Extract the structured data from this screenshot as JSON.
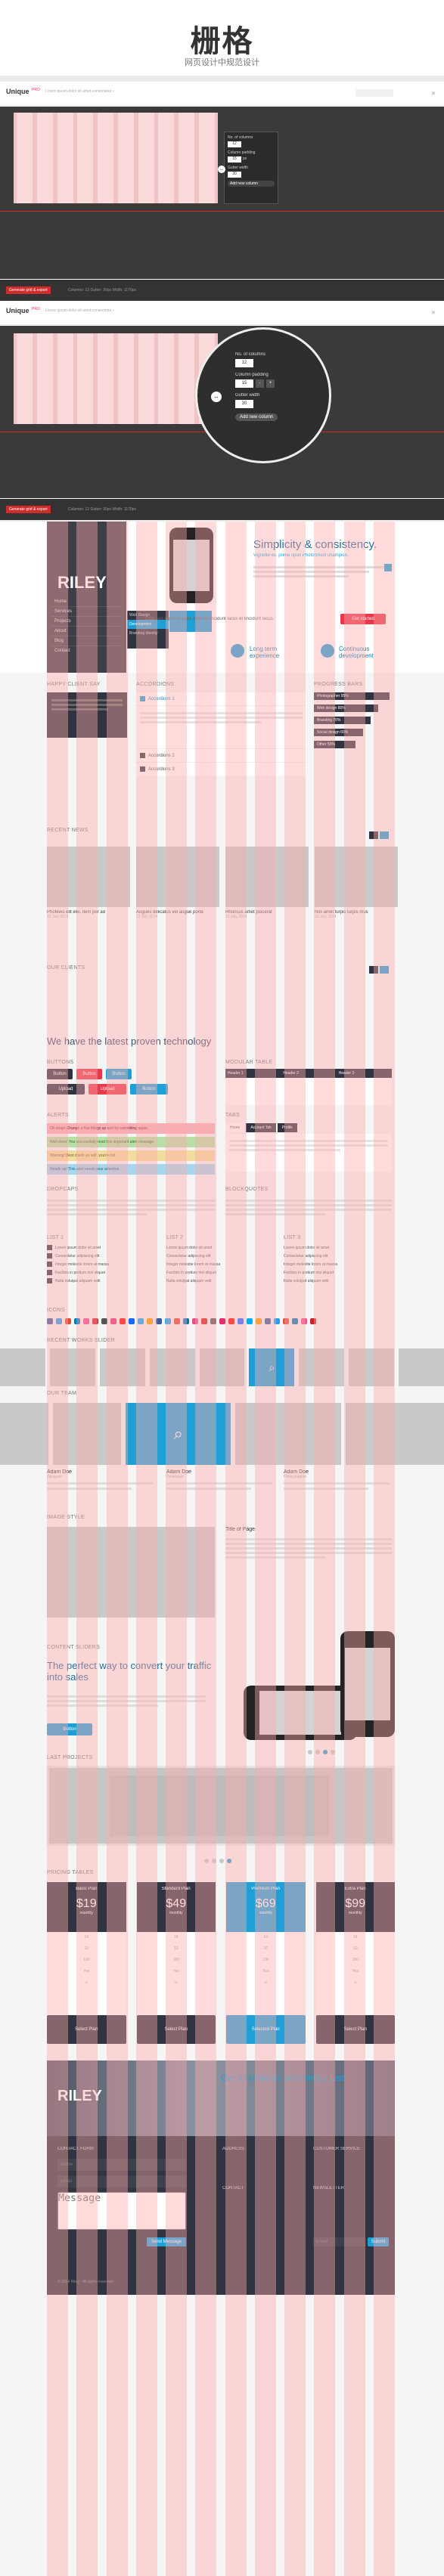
{
  "header": {
    "title": "栅格",
    "subtitle": "网页设计中规范设计"
  },
  "app_bar": {
    "logo": "Unique",
    "logo_badge": "PRO",
    "tagline": "Lorem ipsum dolor sit amet consectetur adipiscing elit"
  },
  "grid_panel": {
    "no_columns_label": "No. of columns",
    "no_columns_value": "12",
    "column_padding_label": "Column padding",
    "column_padding_value": "15",
    "gutter_label": "Gutter width",
    "gutter_value": "30",
    "unit": "px",
    "btn_minus": "-",
    "btn_plus": "+",
    "add_button": "Add new column"
  },
  "footer_bar": {
    "red_btn": "Generate grid & export",
    "text": "Columns: 12  Gutter: 30px  Width: 1170px"
  },
  "hero": {
    "brand": "RILEY",
    "menu": [
      "Home",
      "Services",
      "Projects",
      "About",
      "Blog",
      "Contact"
    ],
    "submenu": [
      "Web Design",
      "Development",
      "Branding Identity"
    ],
    "title": "Simplicity & consistency.",
    "subtitle": "Vignette ex, prime upon PhotoShoot champion.",
    "quote": "Cras sed egestas justo pretium tincidunt lacus et tincidunt lacus.",
    "cta": "Get started",
    "feature1_title": "Long term experience",
    "feature2_title": "Continuous development"
  },
  "sections": {
    "testimonial": "HAPPY CLIENT SAY",
    "accordion": "ACCORDIONS",
    "progress": "PROGRESS BARS",
    "recent_news": "RECENT NEWS",
    "our_clients": "OUR CLIENTS",
    "big_title": "We have the latest proven technology",
    "buttons": "BUTTONS",
    "modular_table": "MODULAR TABLE",
    "alerts": "ALERTS",
    "tabs": "TABS",
    "dropcaps": "DROPCAPS",
    "blockquotes": "BLOCKQUOTES",
    "list1": "LIST 1",
    "list2": "LIST 2",
    "list3": "LIST 3",
    "icons": "ICONS",
    "recent_works": "RECENT WORKS SLIDER",
    "our_team": "OUR TEAM",
    "image_style": "IMAGE STYLE",
    "content_sliders": "CONTENT SLIDERS",
    "last_projects": "LAST PROJECTS",
    "pricing": "PRICING TABLES"
  },
  "accordion_items": [
    "Accordions 1",
    "Accordions 2",
    "Accordions 3"
  ],
  "progress_labels": [
    "Photographer 95%",
    "Web design 80%",
    "Branding 70%",
    "Social design 60%",
    "Other 50%"
  ],
  "news": [
    {
      "title": "PhoMeis elit elei, item per ad",
      "date": "12 July 2014"
    },
    {
      "title": "Augues delicatus vel augue porta",
      "date": "12 July 2014"
    },
    {
      "title": "Rhoncus amet placerat",
      "date": "12 July 2014"
    },
    {
      "title": "Nisi amet turpis turpis mus",
      "date": "12 July 2014"
    }
  ],
  "buttons": [
    "Button",
    "Button",
    "Button",
    "Upload",
    "Upload",
    "Button"
  ],
  "table_headers": [
    "Header 1",
    "Header 2",
    "Header 3"
  ],
  "alerts": [
    "Oh snap! Change a few things up and try submitting again.",
    "Well done! You successfully read this important alert message.",
    "Warning! Best check yo self, you're not.",
    "Heads up! This alert needs your attention."
  ],
  "tabs": [
    "Home",
    "Account Tab",
    "Profile"
  ],
  "lists": [
    "Lorem ipsum dolor sit amet",
    "Consectetur adipiscing elit",
    "Integer molestie lorem at massa",
    "Facilisis in pretium nisl aliquet",
    "Nulla volutpat aliquam velit"
  ],
  "team": [
    {
      "name": "Adam Doe",
      "role": "Designer"
    },
    {
      "name": "Adam Doe",
      "role": "Developer"
    },
    {
      "name": "Adam Doe",
      "role": "Photographer"
    }
  ],
  "image_style_title": "Title of Page",
  "convert": {
    "title": "The perfect way to convert your traffic into sales",
    "btn": "Button"
  },
  "pricing": [
    {
      "name": "Basic Plan",
      "price": "$19",
      "per": "monthly",
      "btn": "Select Plan"
    },
    {
      "name": "Standard Plan",
      "price": "$49",
      "per": "monthly",
      "btn": "Select Plan"
    },
    {
      "name": "Premium Plan",
      "price": "$69",
      "per": "monthly",
      "btn": "Selected Plan"
    },
    {
      "name": "Extra Plan",
      "price": "$99",
      "per": "monthly",
      "btn": "Select Plan"
    }
  ],
  "pricing_rows": [
    "24",
    "10",
    "100",
    "Yes",
    "∞"
  ],
  "footer": {
    "brand": "RILEY",
    "tagline": "Get to know us completely just",
    "contact_form": "CONTACT FORM",
    "address": "ADDRESS",
    "customer_service": "CUSTOMER SERVICE",
    "contact": "CONTACT",
    "newsletter": "NEWSLETTER",
    "name_placeholder": "Name",
    "email_placeholder": "Email",
    "message_placeholder": "Message",
    "send": "Send Message",
    "subscribe": "Submit",
    "copyright": "© 2014 Riley - All rights reserved"
  }
}
